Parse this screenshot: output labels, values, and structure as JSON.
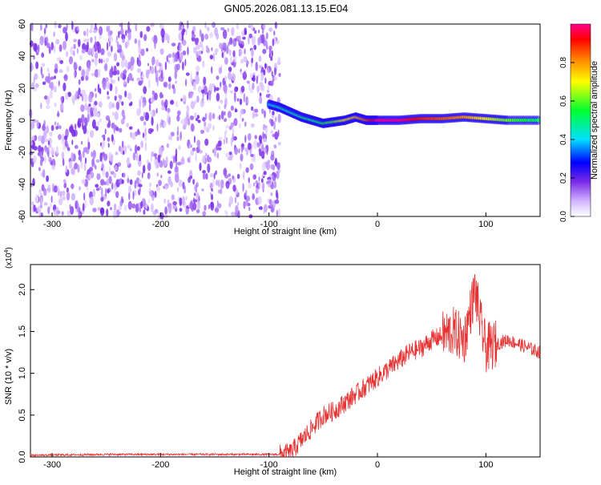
{
  "title": "GN05.2026.081.13.15.E04",
  "chart_data": [
    {
      "type": "heatmap",
      "xlabel": "Height of straight line (km)",
      "ylabel": "Frequency (Hz)",
      "xlim": [
        -320,
        150
      ],
      "ylim": [
        -60,
        60
      ],
      "x_ticks": [
        -300,
        -200,
        -100,
        0,
        100
      ],
      "y_ticks": [
        -60,
        -40,
        -20,
        0,
        20,
        40,
        60
      ],
      "noise_region_x": [
        -320,
        -90
      ],
      "noise_level": 0.15,
      "signal_track": [
        {
          "x": -100,
          "f": 10,
          "amp": 0.4
        },
        {
          "x": -90,
          "f": 8,
          "amp": 0.45
        },
        {
          "x": -80,
          "f": 5,
          "amp": 0.45
        },
        {
          "x": -70,
          "f": 2,
          "amp": 0.5
        },
        {
          "x": -60,
          "f": 0,
          "amp": 0.5
        },
        {
          "x": -50,
          "f": -2,
          "amp": 0.55
        },
        {
          "x": -40,
          "f": -1,
          "amp": 0.6
        },
        {
          "x": -30,
          "f": 0,
          "amp": 0.7
        },
        {
          "x": -20,
          "f": 2,
          "amp": 0.75
        },
        {
          "x": -10,
          "f": 0,
          "amp": 0.85
        },
        {
          "x": 0,
          "f": 0,
          "amp": 1.0
        },
        {
          "x": 20,
          "f": 0,
          "amp": 1.0
        },
        {
          "x": 40,
          "f": 1,
          "amp": 0.9
        },
        {
          "x": 60,
          "f": 1,
          "amp": 0.85
        },
        {
          "x": 80,
          "f": 2,
          "amp": 0.8
        },
        {
          "x": 100,
          "f": 1,
          "amp": 0.7
        },
        {
          "x": 120,
          "f": 0,
          "amp": 0.6
        },
        {
          "x": 150,
          "f": 0,
          "amp": 0.5
        }
      ],
      "colorbar": {
        "label": "Normalized spectral amplitude",
        "range": [
          0,
          1
        ],
        "ticks": [
          0.0,
          0.2,
          0.4,
          0.6,
          0.8
        ]
      }
    },
    {
      "type": "line",
      "xlabel": "Height of straight line (km)",
      "ylabel": "SNR (10 * v/v)",
      "scale_label": "(x10",
      "scale_exp": "4",
      "scale_close": ")",
      "xlim": [
        -320,
        150
      ],
      "ylim": [
        0,
        2.3
      ],
      "x_ticks": [
        -300,
        -200,
        -100,
        0,
        100
      ],
      "y_ticks": [
        0.0,
        0.5,
        1.0,
        1.5,
        2.0
      ],
      "line_color": "#e63232",
      "series": {
        "x": [
          -320,
          -250,
          -150,
          -90,
          -80,
          -70,
          -60,
          -50,
          -40,
          -30,
          -20,
          -10,
          0,
          10,
          20,
          30,
          40,
          50,
          60,
          70,
          80,
          85,
          90,
          95,
          100,
          110,
          120,
          130,
          140,
          150
        ],
        "y": [
          0.02,
          0.03,
          0.03,
          0.03,
          0.05,
          0.2,
          0.35,
          0.5,
          0.55,
          0.65,
          0.75,
          0.85,
          0.95,
          1.05,
          1.15,
          1.25,
          1.3,
          1.4,
          1.45,
          1.5,
          1.4,
          1.7,
          2.0,
          1.6,
          1.3,
          1.35,
          1.4,
          1.35,
          1.3,
          1.25
        ]
      }
    }
  ]
}
